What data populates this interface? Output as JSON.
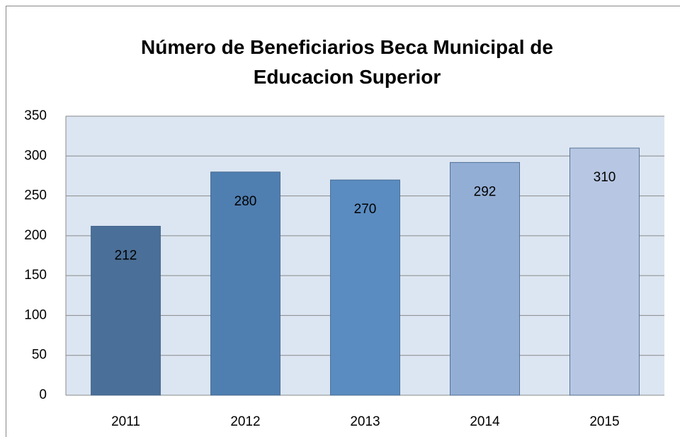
{
  "chart_data": {
    "type": "bar",
    "title": "Número de Beneficiarios Beca Municipal de Educacion Superior",
    "categories": [
      "2011",
      "2012",
      "2013",
      "2014",
      "2015"
    ],
    "values": [
      212,
      280,
      270,
      292,
      310
    ],
    "colors": [
      "#4a6f98",
      "#4f7eb0",
      "#5a8cc1",
      "#93aed5",
      "#b7c6e2"
    ],
    "ylim": [
      0,
      350
    ],
    "yticks": [
      0,
      50,
      100,
      150,
      200,
      250,
      300,
      350
    ],
    "grid": true
  }
}
